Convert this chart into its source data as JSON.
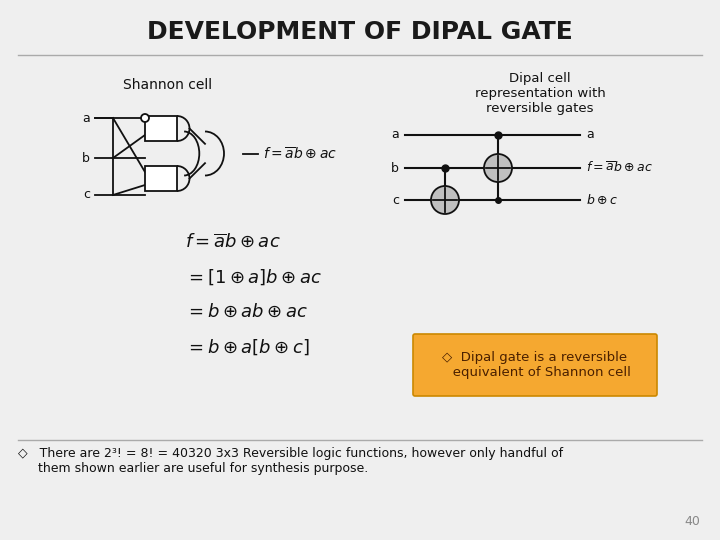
{
  "title": "DEVELOPMENT OF DIPAL GATE",
  "bg_color": "#efefef",
  "title_color": "#1a1a1a",
  "title_fontsize": 18,
  "shannon_label": "Shannon cell",
  "dipal_label": "Dipal cell\nrepresentation with\nreversible gates",
  "box_color_face": "#f5a830",
  "box_color_edge": "#cc8800",
  "box_text": "◇  Dipal gate is a reversible\n    equivalent of Shannon cell",
  "box_text_color": "#4a2000",
  "bottom_text_line1": "◇   There are 2³! = 8! = 40320 3x3 Reversible logic functions, however only handful of",
  "bottom_text_line2": "     them shown earlier are useful for synthesis purpose.",
  "slide_num": "40",
  "line_color": "#aaaaaa",
  "black": "#111111",
  "gate_gray": "#c0c0c0"
}
